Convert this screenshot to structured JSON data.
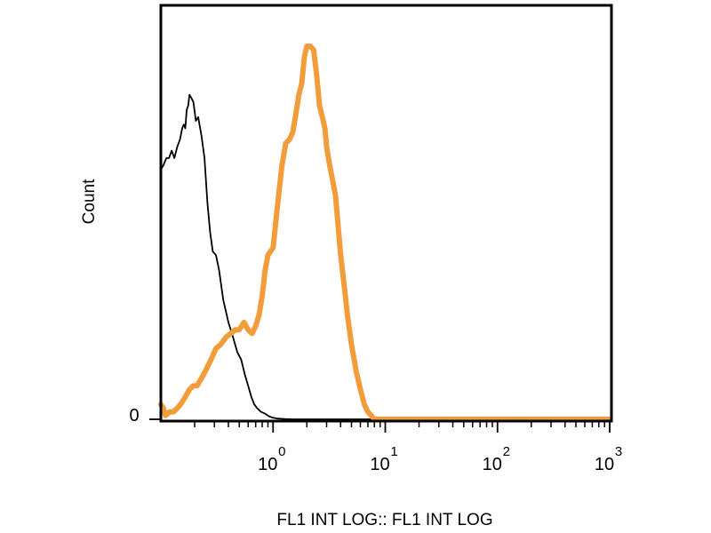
{
  "chart_data": {
    "type": "line",
    "title": "",
    "xlabel": "FL1 INT LOG:: FL1 INT LOG",
    "ylabel": "Count",
    "x_scale": "log",
    "xlim": [
      0.1,
      1000
    ],
    "ylim": [
      0,
      100
    ],
    "grid": false,
    "legend": "none",
    "x_ticks": [
      {
        "value": 1,
        "base": "10",
        "exp": "0"
      },
      {
        "value": 10,
        "base": "10",
        "exp": "1"
      },
      {
        "value": 100,
        "base": "10",
        "exp": "2"
      },
      {
        "value": 1000,
        "base": "10",
        "exp": "3"
      }
    ],
    "y_ticks": [
      {
        "value": 0,
        "label": "0"
      }
    ],
    "series": [
      {
        "color": "#000000",
        "x": [
          0.1,
          0.105,
          0.112,
          0.118,
          0.125,
          0.132,
          0.14,
          0.148,
          0.155,
          0.16,
          0.165,
          0.17,
          0.175,
          0.18,
          0.188,
          0.195,
          0.205,
          0.215,
          0.23,
          0.245,
          0.26,
          0.275,
          0.29,
          0.31,
          0.33,
          0.36,
          0.4,
          0.44,
          0.48,
          0.52,
          0.56,
          0.6,
          0.64,
          0.68,
          0.72,
          0.78,
          0.85,
          0.92,
          1.0,
          1.1,
          1.25,
          1.5,
          1.8,
          2.2,
          3.0,
          5.0,
          10.0,
          50.0,
          200.0,
          1000.0
        ],
        "y": [
          67,
          68,
          70,
          70,
          72,
          70,
          73,
          75,
          78,
          79,
          78,
          83,
          84,
          87,
          86,
          85,
          80,
          81,
          76,
          70,
          58,
          50,
          45,
          44,
          40,
          32,
          26,
          22,
          18,
          16,
          12,
          9,
          6,
          4,
          3,
          2,
          1.5,
          0.8,
          0.4,
          0.2,
          0.1,
          0,
          0,
          0,
          0,
          0,
          0,
          0,
          0,
          0
        ]
      },
      {
        "color": "#f29c3c",
        "x": [
          0.1,
          0.105,
          0.11,
          0.12,
          0.13,
          0.14,
          0.15,
          0.165,
          0.18,
          0.195,
          0.21,
          0.23,
          0.25,
          0.28,
          0.31,
          0.34,
          0.38,
          0.42,
          0.46,
          0.5,
          0.55,
          0.6,
          0.65,
          0.7,
          0.75,
          0.8,
          0.85,
          0.9,
          0.95,
          1.0,
          1.05,
          1.12,
          1.2,
          1.3,
          1.4,
          1.5,
          1.6,
          1.7,
          1.8,
          1.9,
          2.0,
          2.15,
          2.3,
          2.45,
          2.6,
          2.75,
          2.9,
          3.0,
          3.2,
          3.4,
          3.6,
          3.8,
          4.0,
          4.3,
          4.6,
          5.0,
          5.5,
          6.0,
          6.5,
          7.0,
          7.5,
          8.0,
          9.0,
          10.0,
          11.0,
          12.0,
          13.0,
          14.0,
          15.0,
          16.0,
          17.0,
          20.0,
          50.0,
          200.0,
          1000.0
        ],
        "y": [
          4,
          3,
          1,
          2,
          2,
          3,
          4,
          6,
          8,
          9,
          9,
          11,
          13,
          16,
          19,
          20,
          22,
          23,
          24,
          24,
          26,
          24,
          23,
          25,
          28,
          33,
          40,
          44,
          45,
          46,
          52,
          60,
          68,
          74,
          75,
          77,
          82,
          87,
          90,
          97,
          100,
          100,
          99,
          92,
          84,
          81,
          78,
          73,
          68,
          64,
          60,
          52,
          44,
          36,
          28,
          20,
          13,
          8,
          4,
          2,
          1,
          0,
          0,
          0,
          0,
          0,
          0,
          0,
          0,
          0,
          0,
          0,
          0,
          0,
          0
        ]
      }
    ]
  }
}
